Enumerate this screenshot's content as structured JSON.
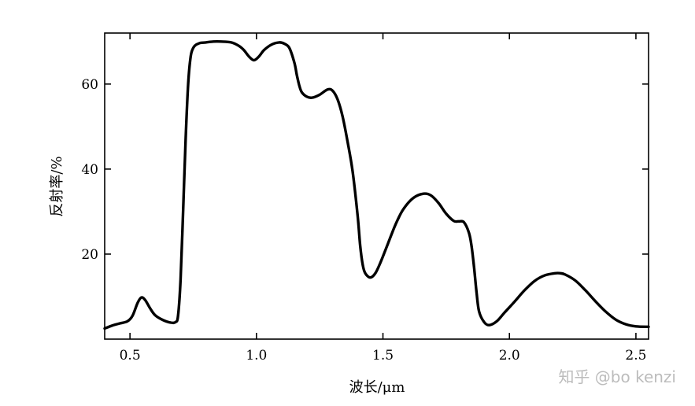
{
  "chart_data": {
    "type": "line",
    "title": "",
    "xlabel": "波长/μm",
    "ylabel": "反射率/%",
    "xlim": [
      0.4,
      2.55
    ],
    "ylim": [
      0,
      72
    ],
    "xticks": [
      0.5,
      1.0,
      1.5,
      2.0,
      2.5
    ],
    "xtick_labels": [
      "0.5",
      "1.0",
      "1.5",
      "2.0",
      "2.5"
    ],
    "yticks": [
      20,
      40,
      60
    ],
    "ytick_labels": [
      "20",
      "40",
      "60"
    ],
    "grid": false,
    "series": [
      {
        "color": "#000000",
        "x": [
          0.4,
          0.43,
          0.46,
          0.49,
          0.51,
          0.53,
          0.545,
          0.56,
          0.58,
          0.6,
          0.63,
          0.66,
          0.68,
          0.69,
          0.7,
          0.71,
          0.72,
          0.73,
          0.74,
          0.75,
          0.76,
          0.77,
          0.78,
          0.8,
          0.83,
          0.86,
          0.9,
          0.93,
          0.95,
          0.97,
          0.99,
          1.01,
          1.03,
          1.06,
          1.09,
          1.11,
          1.13,
          1.15,
          1.16,
          1.17,
          1.18,
          1.2,
          1.22,
          1.25,
          1.28,
          1.3,
          1.32,
          1.34,
          1.36,
          1.38,
          1.4,
          1.41,
          1.42,
          1.43,
          1.45,
          1.47,
          1.49,
          1.52,
          1.55,
          1.58,
          1.62,
          1.66,
          1.69,
          1.72,
          1.75,
          1.78,
          1.8,
          1.82,
          1.84,
          1.85,
          1.86,
          1.87,
          1.88,
          1.9,
          1.92,
          1.95,
          1.98,
          2.02,
          2.06,
          2.1,
          2.14,
          2.18,
          2.2,
          2.22,
          2.26,
          2.3,
          2.34,
          2.38,
          2.42,
          2.46,
          2.5,
          2.55
        ],
        "y": [
          2.5,
          3.2,
          3.7,
          4.2,
          5.5,
          8.5,
          9.8,
          9.2,
          7.2,
          5.6,
          4.5,
          3.9,
          4.0,
          5.5,
          14,
          30,
          47,
          60,
          66.5,
          68.5,
          69.2,
          69.5,
          69.7,
          69.8,
          70,
          70,
          69.8,
          69,
          68,
          66.5,
          65.6,
          66.5,
          68,
          69.3,
          69.8,
          69.5,
          68.5,
          65,
          62,
          59.5,
          58,
          57,
          56.8,
          57.5,
          58.7,
          58.5,
          56.5,
          52.5,
          46.5,
          39.5,
          29,
          22,
          17.5,
          15.5,
          14.5,
          15.5,
          18,
          22.5,
          27,
          30.5,
          33.2,
          34.2,
          33.8,
          32,
          29.5,
          27.8,
          27.7,
          27.5,
          25,
          22,
          17,
          11,
          6.5,
          4.0,
          3.3,
          4.2,
          6.2,
          8.8,
          11.5,
          13.7,
          15.0,
          15.5,
          15.5,
          15.2,
          13.8,
          11.5,
          8.9,
          6.5,
          4.6,
          3.5,
          3.0,
          2.9
        ]
      }
    ]
  },
  "watermark": "知乎 @bo kenzi"
}
